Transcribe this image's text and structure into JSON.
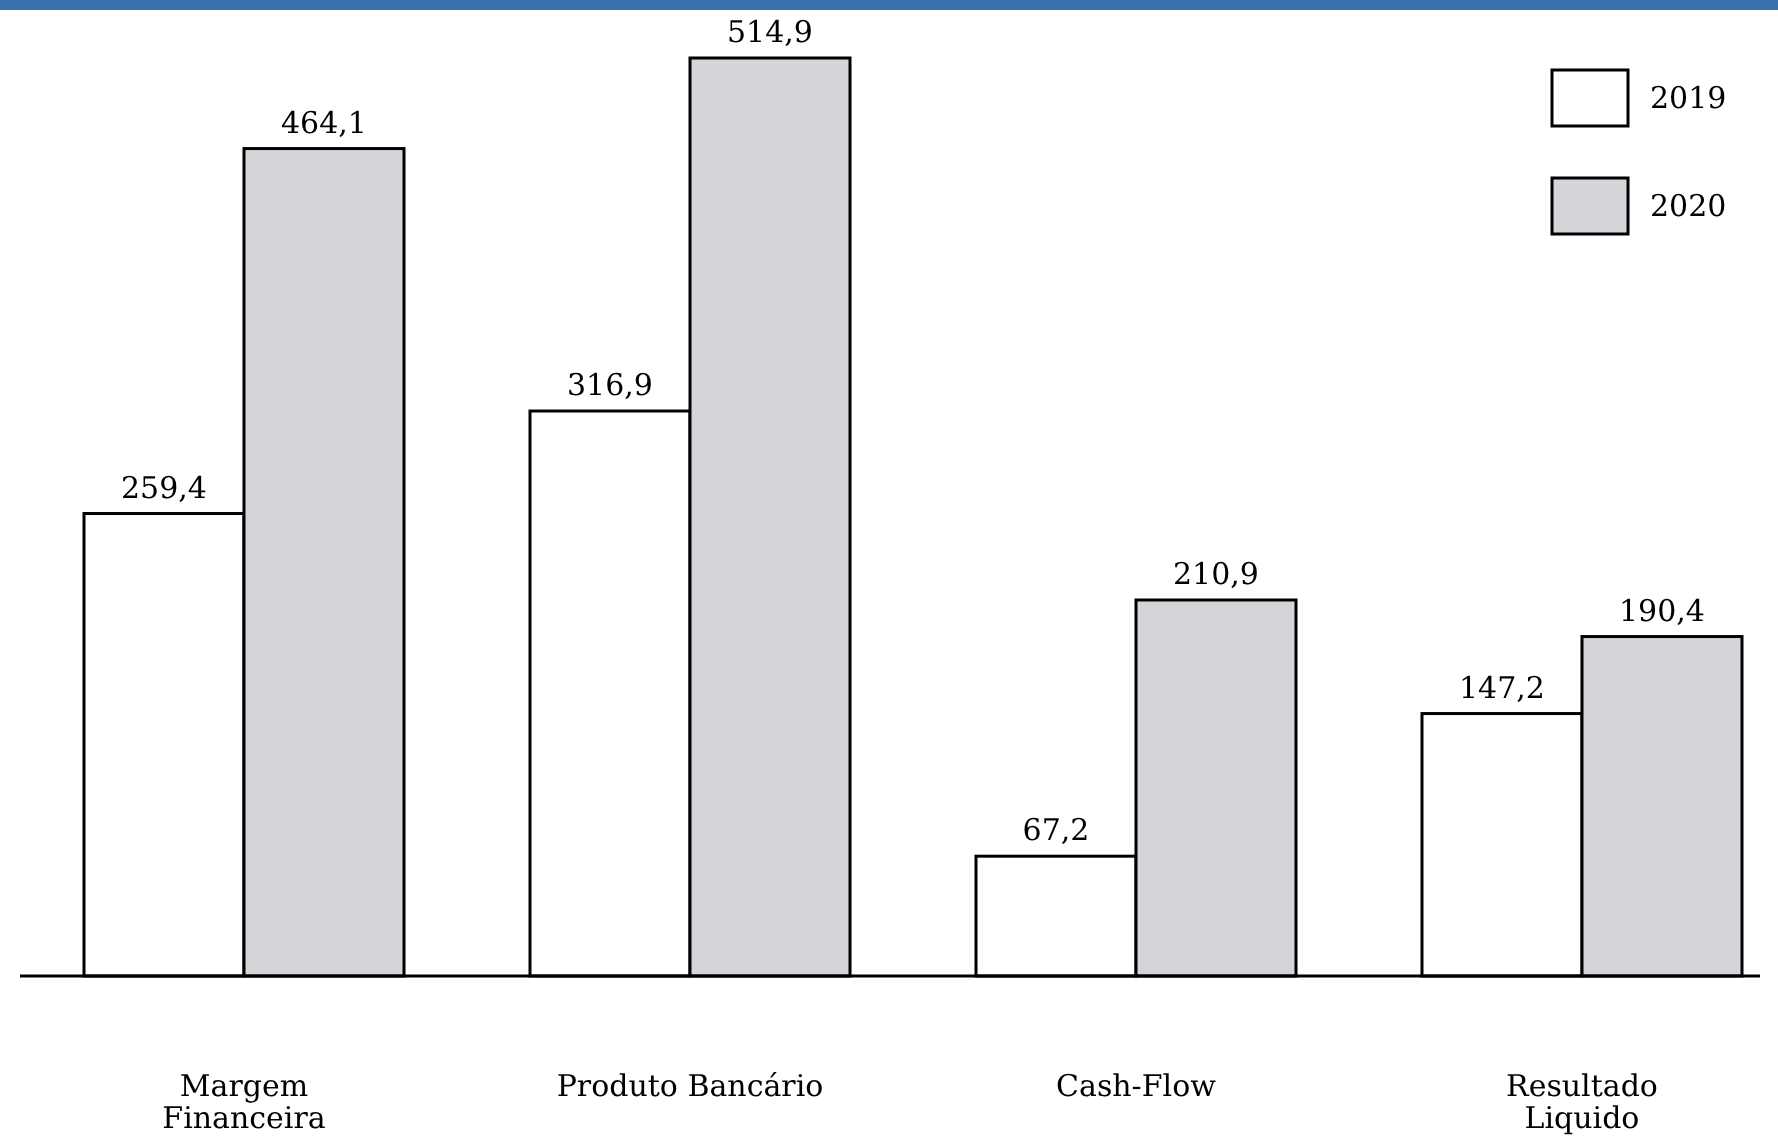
{
  "chart_data": {
    "type": "bar",
    "categories": [
      "Margem\nFinanceira",
      "Produto Bancário",
      "Cash-Flow",
      "Resultado\nLiquido"
    ],
    "series": [
      {
        "name": "2019",
        "color": "#ffffff",
        "values": [
          259.4,
          316.9,
          67.2,
          147.2
        ],
        "value_labels": [
          "259,4",
          "316,9",
          "67,2",
          "147,2"
        ]
      },
      {
        "name": "2020",
        "color": "#d4d5d8",
        "values": [
          464.1,
          514.9,
          210.9,
          190.4
        ],
        "value_labels": [
          "464,1",
          "514,9",
          "210,9",
          "190,4"
        ]
      }
    ],
    "legend": "top right"
  }
}
